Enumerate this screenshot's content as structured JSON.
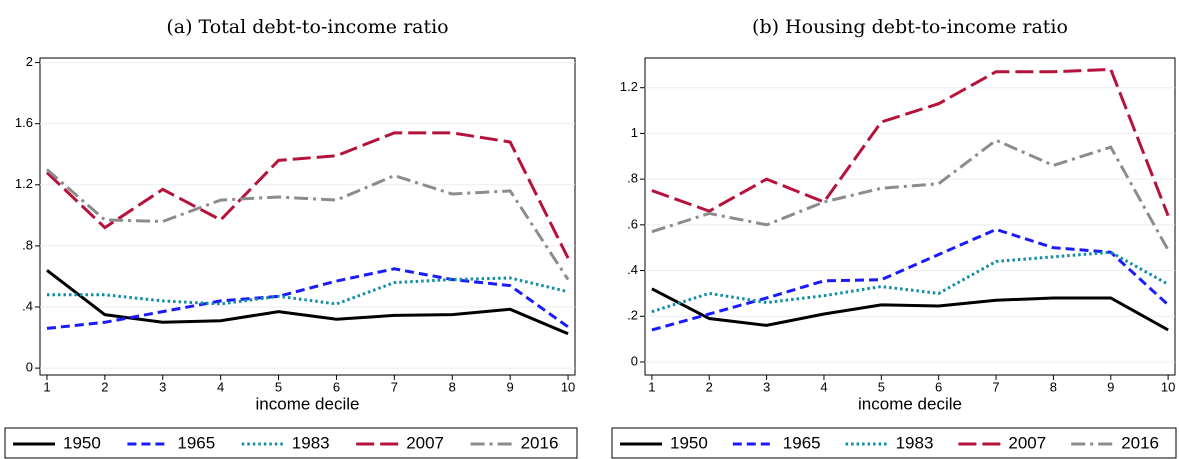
{
  "chart_data": [
    {
      "type": "line",
      "title": "(a) Total debt-to-income ratio",
      "xlabel": "income decile",
      "x": [
        1,
        2,
        3,
        4,
        5,
        6,
        7,
        8,
        9,
        10
      ],
      "xlim": [
        0.88,
        10.12
      ],
      "xticks": [
        1,
        2,
        3,
        4,
        5,
        6,
        7,
        8,
        9,
        10
      ],
      "ylim": [
        -0.045,
        2.03
      ],
      "yticks": [
        0,
        {
          "value": 0.4,
          "label": ".4"
        },
        {
          "value": 0.8,
          "label": ".8"
        },
        1.2,
        1.6,
        2
      ],
      "grid": true,
      "legend": "bottom",
      "series": [
        {
          "name": "1950",
          "color": "#000000",
          "dash": "solid",
          "values": [
            0.64,
            0.35,
            0.3,
            0.31,
            0.37,
            0.32,
            0.345,
            0.35,
            0.385,
            0.225
          ]
        },
        {
          "name": "1965",
          "color": "#1a1aff",
          "dash": "dash",
          "values": [
            0.26,
            0.3,
            0.37,
            0.44,
            0.47,
            0.57,
            0.65,
            0.58,
            0.54,
            0.27
          ]
        },
        {
          "name": "1983",
          "color": "#0f8ca8",
          "dash": "dot",
          "values": [
            0.48,
            0.48,
            0.44,
            0.42,
            0.47,
            0.42,
            0.56,
            0.58,
            0.59,
            0.5
          ]
        },
        {
          "name": "2007",
          "color": "#b5123c",
          "dash": "longdash",
          "values": [
            1.28,
            0.92,
            1.17,
            0.97,
            1.36,
            1.39,
            1.54,
            1.54,
            1.48,
            0.72
          ]
        },
        {
          "name": "2016",
          "color": "#8c8c8c",
          "dash": "dashdot",
          "values": [
            1.3,
            0.97,
            0.96,
            1.1,
            1.12,
            1.1,
            1.26,
            1.14,
            1.16,
            0.58
          ]
        }
      ]
    },
    {
      "type": "line",
      "title": "(b) Housing debt-to-income ratio",
      "xlabel": "income decile",
      "x": [
        1,
        2,
        3,
        4,
        5,
        6,
        7,
        8,
        9,
        10
      ],
      "xlim": [
        0.88,
        10.12
      ],
      "xticks": [
        1,
        2,
        3,
        4,
        5,
        6,
        7,
        8,
        9,
        10
      ],
      "ylim": [
        -0.057,
        1.33
      ],
      "yticks": [
        0,
        {
          "value": 0.2,
          "label": ".2"
        },
        {
          "value": 0.4,
          "label": ".4"
        },
        {
          "value": 0.6,
          "label": ".6"
        },
        {
          "value": 0.8,
          "label": ".8"
        },
        1,
        1.2
      ],
      "grid": true,
      "legend": "bottom",
      "series": [
        {
          "name": "1950",
          "color": "#000000",
          "dash": "solid",
          "values": [
            0.32,
            0.19,
            0.16,
            0.21,
            0.25,
            0.245,
            0.27,
            0.28,
            0.28,
            0.14
          ]
        },
        {
          "name": "1965",
          "color": "#1a1aff",
          "dash": "dash",
          "values": [
            0.14,
            0.21,
            0.28,
            0.355,
            0.36,
            0.47,
            0.58,
            0.5,
            0.48,
            0.25
          ]
        },
        {
          "name": "1983",
          "color": "#0f8ca8",
          "dash": "dot",
          "values": [
            0.22,
            0.3,
            0.26,
            0.29,
            0.33,
            0.3,
            0.44,
            0.46,
            0.48,
            0.34
          ]
        },
        {
          "name": "2007",
          "color": "#b5123c",
          "dash": "longdash",
          "values": [
            0.75,
            0.66,
            0.8,
            0.7,
            1.05,
            1.13,
            1.27,
            1.27,
            1.28,
            0.64
          ]
        },
        {
          "name": "2016",
          "color": "#8c8c8c",
          "dash": "dashdot",
          "values": [
            0.57,
            0.65,
            0.6,
            0.7,
            0.76,
            0.78,
            0.97,
            0.86,
            0.94,
            0.49
          ]
        }
      ]
    }
  ]
}
